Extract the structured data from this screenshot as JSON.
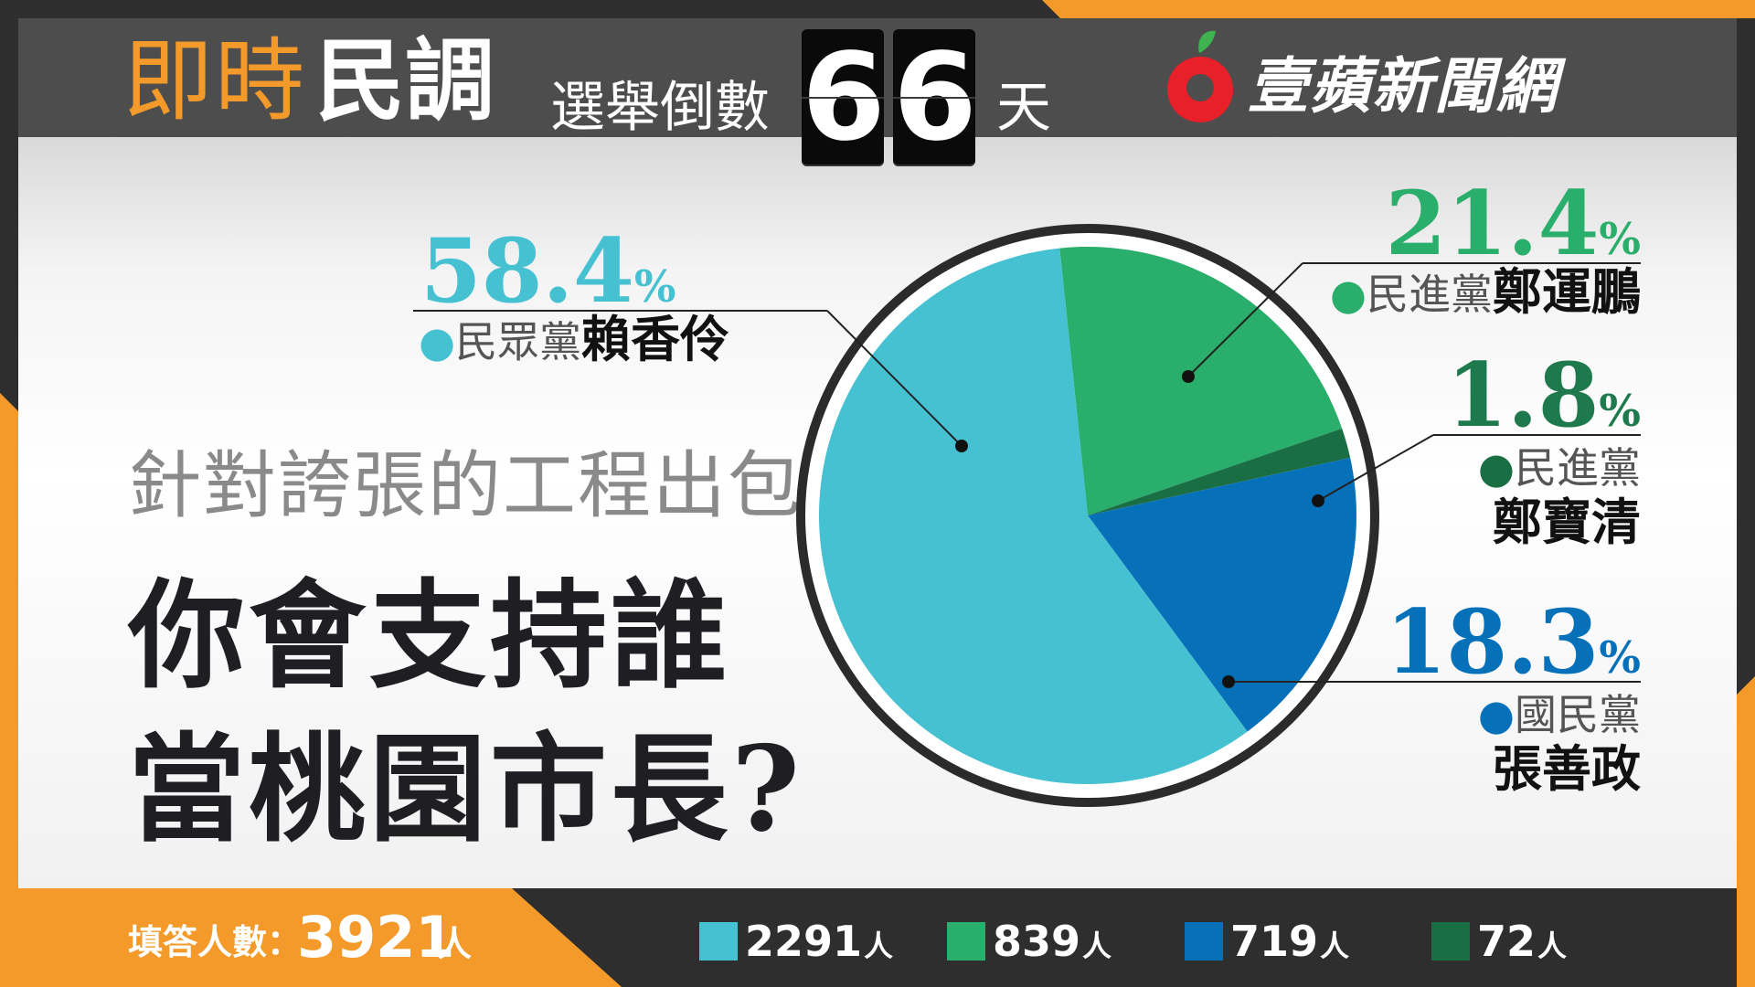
{
  "header": {
    "title_a": "即時",
    "title_b": "民調",
    "countdown_label": "選舉倒數",
    "countdown_digits": [
      "6",
      "6"
    ],
    "countdown_unit": "天",
    "brand": "壹蘋新聞網"
  },
  "question": {
    "subtitle": "針對誇張的工程出包",
    "line1": "你會支持誰",
    "line2": "當桃園市長?"
  },
  "chart_data": {
    "type": "pie",
    "total_label": "填答人數：",
    "total": 3921,
    "unit": "人",
    "slices": [
      {
        "party": "民眾黨",
        "name": "賴香伶",
        "percent": 58.4,
        "count": 2291,
        "color": "#45c1d2"
      },
      {
        "party": "民進黨",
        "name": "鄭運鵬",
        "percent": 21.4,
        "count": 839,
        "color": "#2aae6b"
      },
      {
        "party": "民進黨",
        "name": "鄭寶清",
        "percent": 1.8,
        "count": 72,
        "color": "#1a6e44"
      },
      {
        "party": "國民黨",
        "name": "張善政",
        "percent": 18.3,
        "count": 719,
        "color": "#0670b8"
      }
    ],
    "legend": [
      {
        "count": "2291",
        "unit": "人",
        "color": "#45c1d2"
      },
      {
        "count": "839",
        "unit": "人",
        "color": "#2aae6b"
      },
      {
        "count": "719",
        "unit": "人",
        "color": "#0670b8"
      },
      {
        "count": "72",
        "unit": "人",
        "color": "#1a6e44"
      }
    ]
  },
  "colors": {
    "orange": "#f39a2b",
    "dark": "#2e2e2e",
    "header_gray": "#4d4d4d",
    "text_dark": "#1f1f23",
    "pct_dark_green": "#1e7a4c",
    "pct_teal": "#45c1d2",
    "pct_green": "#2aae6b",
    "pct_blue": "#0670b8"
  }
}
